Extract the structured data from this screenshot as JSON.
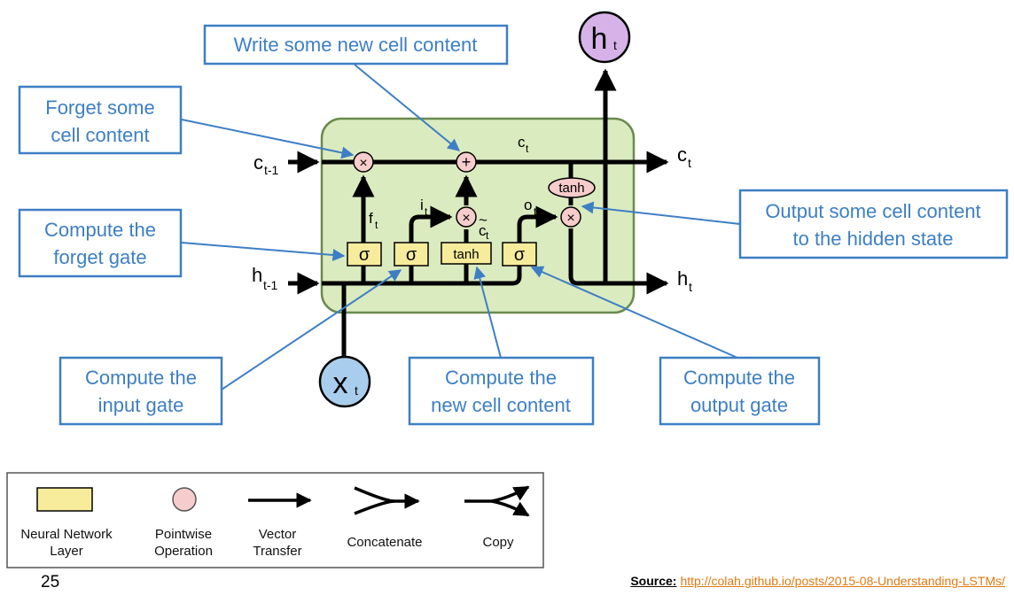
{
  "callouts": {
    "write": "Write some new cell content",
    "forget_content": [
      "Forget some",
      "cell content"
    ],
    "forget_gate": [
      "Compute the",
      "forget gate"
    ],
    "output_content": [
      "Output some cell content",
      "to the hidden state"
    ],
    "input_gate": [
      "Compute the",
      "input gate"
    ],
    "new_content": [
      "Compute the",
      "new cell content"
    ],
    "output_gate": [
      "Compute the",
      "output gate"
    ]
  },
  "cell": {
    "c_prev": {
      "main": "c",
      "sub": "t-1"
    },
    "h_prev": {
      "main": "h",
      "sub": "t-1"
    },
    "c_out": {
      "main": "c",
      "sub": "t"
    },
    "h_out": {
      "main": "h",
      "sub": "t"
    },
    "c_mid": {
      "main": "c",
      "sub": "t"
    },
    "h_top": {
      "main": "h",
      "sub": "t"
    },
    "x_in": {
      "main": "x",
      "sub": "t"
    },
    "f": {
      "main": "f",
      "sub": "t"
    },
    "i": {
      "main": "i",
      "sub": "t"
    },
    "o": {
      "main": "o",
      "sub": "t"
    },
    "c_tilde": {
      "main": "c",
      "sub": "t",
      "mark": "~"
    },
    "sigma": "σ",
    "tanh": "tanh",
    "times": "×",
    "plus": "+"
  },
  "legend": {
    "items": [
      {
        "label": [
          "Neural Network",
          "Layer"
        ]
      },
      {
        "label": [
          "Pointwise",
          "Operation"
        ]
      },
      {
        "label": [
          "Vector",
          "Transfer"
        ]
      },
      {
        "label": [
          "Concatenate"
        ]
      },
      {
        "label": [
          "Copy"
        ]
      }
    ]
  },
  "footer": {
    "page_number": "25",
    "source_label": "Source:",
    "source_url": "http://colah.github.io/posts/2015-08-Understanding-LSTMs/"
  },
  "colors": {
    "cell_fill": "#dbebc0",
    "cell_stroke": "#6a8a4e",
    "gate_fill": "#f7ec9c",
    "op_fill": "#f7cccc",
    "callout_border": "#3d7fc4",
    "h_circle": "#d7b2e8",
    "x_circle": "#a9cdec"
  }
}
